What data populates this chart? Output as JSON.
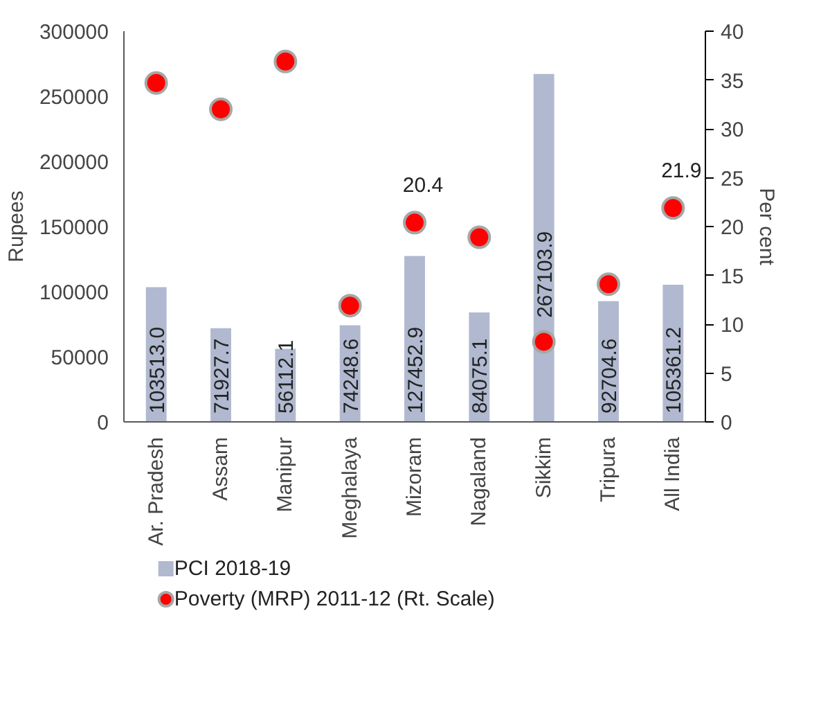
{
  "chart_data": {
    "type": "bar",
    "ylabel": "Rupees",
    "y2label": "Per cent",
    "categories": [
      "Ar. Pradesh",
      "Assam",
      "Manipur",
      "Meghalaya",
      "Mizoram",
      "Nagaland",
      "Sikkim",
      "Tripura",
      "All India"
    ],
    "series": [
      {
        "name": "PCI 2018-19",
        "color": "#b0b9cf",
        "values": [
          103513.0,
          71927.7,
          56112.1,
          74248.6,
          127452.9,
          84075.1,
          267103.9,
          92704.6,
          105361.2
        ],
        "value_labels": [
          "103513.0",
          "71927.7",
          "56112.1",
          "74248.6",
          "127452.9",
          "84075.1",
          "267103.9",
          "92704.6",
          "105361.2"
        ]
      },
      {
        "name": "Poverty (MRP) 2011-12 (Rt. Scale)",
        "type": "scatter",
        "axis": "y2",
        "marker": "circle",
        "color": "#ff0000",
        "values": [
          34.7,
          32.0,
          36.9,
          11.9,
          20.4,
          18.9,
          8.2,
          14.1,
          21.9
        ],
        "value_labels": [
          null,
          null,
          null,
          null,
          "20.4",
          null,
          null,
          null,
          "21.9"
        ]
      }
    ],
    "ylim": [
      0,
      300000
    ],
    "yticks": [
      0,
      50000,
      100000,
      150000,
      200000,
      250000,
      300000
    ],
    "y2lim": [
      0,
      40
    ],
    "y2ticks": [
      0,
      5,
      10,
      15,
      20,
      25,
      30,
      35,
      40
    ],
    "grid": false,
    "legend": "bottom left"
  }
}
